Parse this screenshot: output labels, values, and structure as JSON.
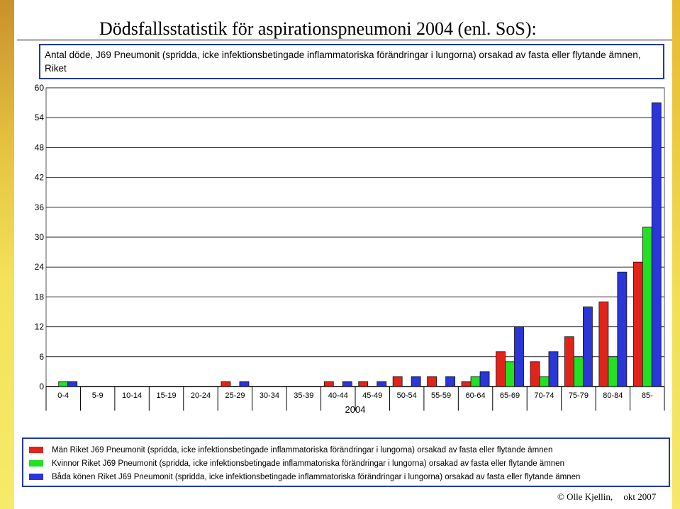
{
  "title": "Dödsfallsstatistik för aspirationspneumoni 2004 (enl. SoS):",
  "caption": "Antal döde, J69 Pneumonit (spridda, icke infektionsbetingade inflammatoriska förändringar i lungorna) orsakad av fasta eller flytande ämnen, Riket",
  "footer": {
    "author": "© Olle Kjellin,",
    "date": "okt 2007"
  },
  "colors": {
    "series_men": "#e2231a",
    "series_women": "#22e022",
    "series_both": "#2a36d8",
    "frame": "#233a9c"
  },
  "chart_data": {
    "type": "bar",
    "xlabel": "2004",
    "ylabel": "",
    "ylim": [
      0,
      60
    ],
    "yticks": [
      0,
      6,
      12,
      18,
      24,
      30,
      36,
      42,
      48,
      54,
      60
    ],
    "grid": true,
    "legend_position": "bottom",
    "categories": [
      "0-4",
      "5-9",
      "10-14",
      "15-19",
      "20-24",
      "25-29",
      "30-34",
      "35-39",
      "40-44",
      "45-49",
      "50-54",
      "55-59",
      "60-64",
      "65-69",
      "70-74",
      "75-79",
      "80-84",
      "85-"
    ],
    "series": [
      {
        "name": "Män Riket J69 Pneumonit (spridda, icke infektionsbetingade inflammatoriska förändringar i lungorna) orsakad av fasta eller flytande ämnen",
        "color": "#e2231a",
        "values": [
          0,
          0,
          0,
          0,
          0,
          1,
          0,
          0,
          1,
          1,
          2,
          2,
          1,
          7,
          5,
          10,
          17,
          25
        ]
      },
      {
        "name": "Kvinnor Riket J69 Pneumonit (spridda, icke infektionsbetingade inflammatoriska förändringar i lungorna) orsakad av fasta eller flytande ämnen",
        "color": "#22e022",
        "values": [
          1,
          0,
          0,
          0,
          0,
          0,
          0,
          0,
          0,
          0,
          0,
          0,
          2,
          5,
          2,
          6,
          6,
          32
        ]
      },
      {
        "name": "Båda könen Riket J69 Pneumonit (spridda, icke infektionsbetingade inflammatoriska förändringar i lungorna) orsakad av fasta eller flytande ämnen",
        "color": "#2a36d8",
        "values": [
          1,
          0,
          0,
          0,
          0,
          1,
          0,
          0,
          1,
          1,
          2,
          2,
          3,
          12,
          7,
          16,
          23,
          57
        ]
      }
    ]
  }
}
